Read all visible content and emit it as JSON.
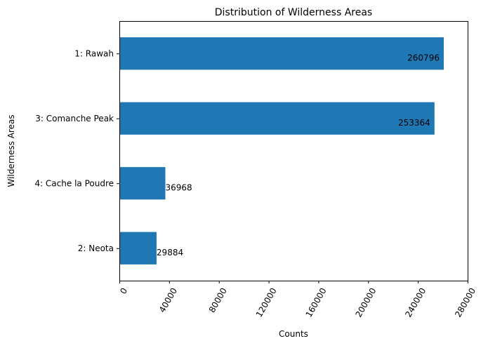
{
  "chart_data": {
    "type": "bar",
    "orientation": "horizontal",
    "title": "Distribution of Wilderness Areas",
    "xlabel": "Counts",
    "ylabel": "Wilderness Areas",
    "categories": [
      "1: Rawah",
      "3: Comanche Peak",
      "4: Cache la Poudre",
      "2: Neota"
    ],
    "values": [
      260796,
      253364,
      36968,
      29884
    ],
    "data_labels": [
      "260796",
      "253364",
      "36968",
      "29884"
    ],
    "xlim": [
      0,
      280000
    ],
    "xticks": [
      0,
      40000,
      80000,
      120000,
      160000,
      200000,
      240000,
      280000
    ],
    "xtick_labels": [
      "0",
      "40000",
      "80000",
      "120000",
      "160000",
      "200000",
      "240000",
      "280000"
    ],
    "xtick_rotation_deg": 60,
    "grid": false,
    "legend": "none",
    "bar_color": "#1f77b4"
  }
}
